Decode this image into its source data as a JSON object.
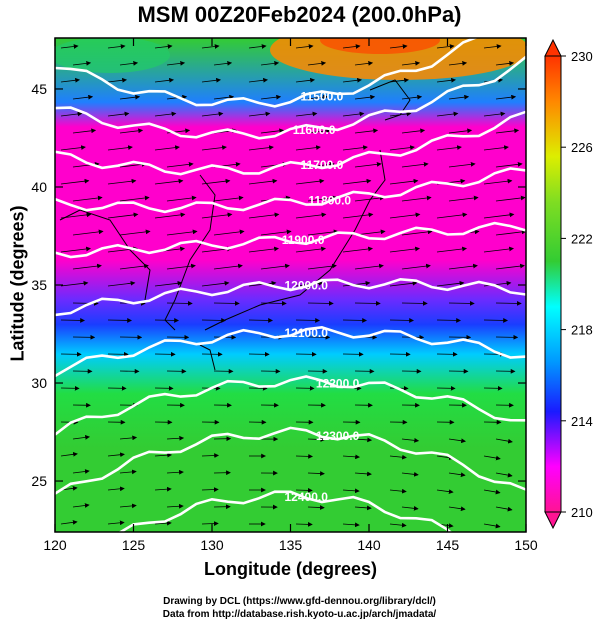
{
  "title": "MSM 00Z20Feb2024 (200.0hPa)",
  "xaxis": {
    "label": "Longitude (degrees)",
    "range": [
      120,
      150
    ],
    "ticks": [
      120,
      125,
      130,
      135,
      140,
      145,
      150
    ]
  },
  "yaxis": {
    "label": "Latitude  (degrees)",
    "range": [
      22.4,
      47.6
    ],
    "ticks": [
      25,
      30,
      35,
      40,
      45
    ]
  },
  "colorbar": {
    "range": [
      210,
      230
    ],
    "ticks": [
      210,
      214,
      218,
      222,
      226,
      230
    ],
    "palette": [
      "#ff1493",
      "#ff00ff",
      "#1a1aff",
      "#0099ff",
      "#00ffff",
      "#33cc33",
      "#7fdd22",
      "#ddee00",
      "#ff8800",
      "#ff3300"
    ]
  },
  "contours": [
    {
      "label": "11500.0",
      "lat": 43.7,
      "lon_label": 137.0
    },
    {
      "label": "11600.0",
      "lat": 42.1,
      "lon_label": 136.5
    },
    {
      "label": "11700.0",
      "lat": 40.3,
      "lon_label": 137.0
    },
    {
      "label": "11800.0",
      "lat": 38.5,
      "lon_label": 137.5
    },
    {
      "label": "11900.0",
      "lat": 36.6,
      "lon_label": 135.8
    },
    {
      "label": "12000.0",
      "lat": 34.3,
      "lon_label": 136.0
    },
    {
      "label": "12100.0",
      "lat": 31.9,
      "lon_label": 136.0
    },
    {
      "label": "12200.0",
      "lat": 29.4,
      "lon_label": 138.0
    },
    {
      "label": "12300.0",
      "lat": 26.8,
      "lon_label": 138.0
    },
    {
      "label": "12400.0",
      "lat": 23.6,
      "lon_label": 136.0
    }
  ],
  "credits": [
    "Drawing by DCL (https://www.gfd-dennou.org/library/dcl/)",
    "Data from http://database.rish.kyoto-u.ac.jp/arch/jmadata/"
  ]
}
